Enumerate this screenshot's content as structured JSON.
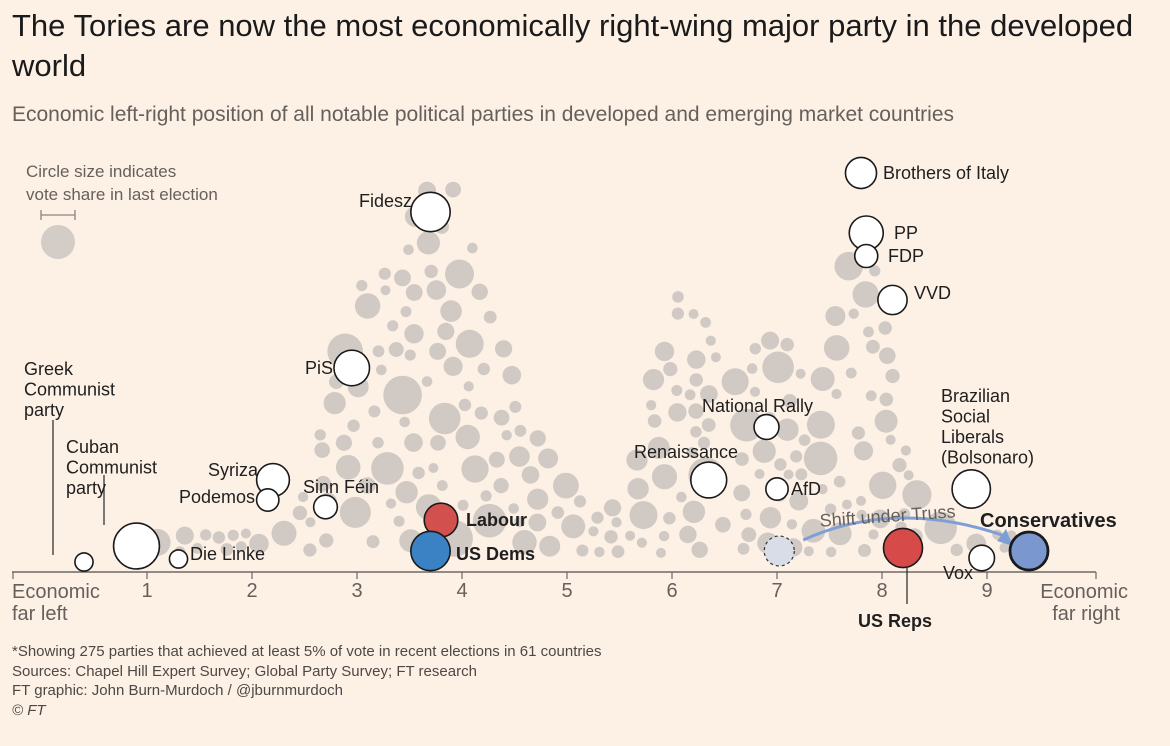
{
  "chart_data": {
    "type": "scatter",
    "title": "The Tories are now the most economically right-wing major party in the developed world",
    "subtitle": "Economic left-right position of all notable political parties in developed and emerging market countries",
    "legend": {
      "text": [
        "Circle size indicates",
        "vote share in last election"
      ],
      "placement": "top-left"
    },
    "xlim": [
      -0.1,
      10.2
    ],
    "x_ticks": [
      1,
      2,
      3,
      4,
      5,
      6,
      7,
      8,
      9
    ],
    "x_end_labels": {
      "left": [
        "Economic",
        "far left"
      ],
      "right": [
        "Economic",
        "far right"
      ]
    },
    "colors": {
      "background": "#fdf1e6",
      "background_parties": "#c9c2bd",
      "highlight_uk": "#d2514f",
      "highlight_us_dems": "#3b82c4",
      "us_reps": "#d64a4a",
      "conservatives": "#7b97cf",
      "arrow": "#7e9fd6"
    },
    "highlighted_parties": [
      {
        "name": "Greek Communist party",
        "label_lines": [
          "Greek",
          "Communist",
          "party"
        ],
        "x": 0.4,
        "vote_share": 5,
        "color": "white"
      },
      {
        "name": "Cuban Communist party",
        "label_lines": [
          "Cuban",
          "Communist",
          "party"
        ],
        "x": 0.9,
        "vote_share": 70,
        "color": "white"
      },
      {
        "name": "Die Linke",
        "label_lines": [
          "Die Linke"
        ],
        "x": 1.3,
        "vote_share": 5,
        "color": "white"
      },
      {
        "name": "Syriza",
        "label_lines": [
          "Syriza"
        ],
        "x": 2.2,
        "vote_share": 30,
        "color": "white"
      },
      {
        "name": "Podemos",
        "label_lines": [
          "Podemos"
        ],
        "x": 2.15,
        "vote_share": 10,
        "color": "white"
      },
      {
        "name": "Sinn Féin",
        "label_lines": [
          "Sinn Féin"
        ],
        "x": 2.7,
        "vote_share": 12,
        "color": "white"
      },
      {
        "name": "PiS",
        "label_lines": [
          "PiS"
        ],
        "x": 2.95,
        "vote_share": 37,
        "color": "white"
      },
      {
        "name": "Fidesz",
        "label_lines": [
          "Fidesz"
        ],
        "x": 3.7,
        "vote_share": 48,
        "color": "white"
      },
      {
        "name": "Labour",
        "label_lines": [
          "Labour"
        ],
        "x": 3.8,
        "vote_share": 32,
        "color": "red",
        "bold": true
      },
      {
        "name": "US Dems",
        "label_lines": [
          "US Dems"
        ],
        "x": 3.7,
        "vote_share": 48,
        "color": "blue",
        "bold": true
      },
      {
        "name": "Renaissance",
        "label_lines": [
          "Renaissance"
        ],
        "x": 6.35,
        "vote_share": 38,
        "color": "white"
      },
      {
        "name": "National Rally",
        "label_lines": [
          "National Rally"
        ],
        "x": 6.9,
        "vote_share": 14,
        "color": "white"
      },
      {
        "name": "AfD",
        "label_lines": [
          "AfD"
        ],
        "x": 7.0,
        "vote_share": 10,
        "color": "white"
      },
      {
        "name": "Brothers of Italy",
        "label_lines": [
          "Brothers of Italy"
        ],
        "x": 7.8,
        "vote_share": 26,
        "color": "white"
      },
      {
        "name": "PP",
        "label_lines": [
          "PP"
        ],
        "x": 7.85,
        "vote_share": 33,
        "color": "white"
      },
      {
        "name": "FDP",
        "label_lines": [
          "FDP"
        ],
        "x": 7.85,
        "vote_share": 11,
        "color": "white"
      },
      {
        "name": "VVD",
        "label_lines": [
          "VVD"
        ],
        "x": 8.1,
        "vote_share": 22,
        "color": "white"
      },
      {
        "name": "Brazilian Social Liberals (Bolsonaro)",
        "label_lines": [
          "Brazilian",
          "Social",
          "Liberals",
          "(Bolsonaro)"
        ],
        "x": 8.85,
        "vote_share": 45,
        "color": "white"
      },
      {
        "name": "Vox",
        "label_lines": [
          "Vox"
        ],
        "x": 8.95,
        "vote_share": 15,
        "color": "white"
      },
      {
        "name": "US Reps",
        "label_lines": [
          "US Reps"
        ],
        "x": 8.2,
        "vote_share": 47,
        "color": "red",
        "bold": true
      },
      {
        "name": "Conservatives",
        "label_lines": [
          "Conservatives"
        ],
        "x": 9.4,
        "vote_share": 44,
        "color": "blue",
        "bold": true
      }
    ],
    "annotations": [
      {
        "text": "Shift under Truss",
        "from_x": 7.05,
        "to_x": 9.4
      }
    ],
    "footnotes": [
      "*Showing 275 parties that achieved at least 5% of vote in recent elections in 61 countries",
      "Sources: Chapel Hill Expert Survey; Global Party Survey; FT research",
      "FT graphic: John Burn-Murdoch / @jburnmurdoch",
      "© FT"
    ]
  }
}
